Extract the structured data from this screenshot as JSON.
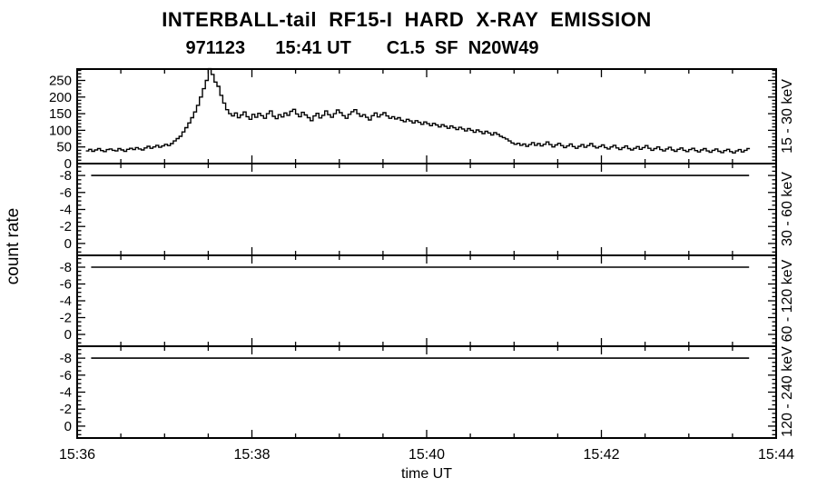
{
  "header": {
    "title": "INTERBALL-tail  RF15-I  HARD  X-RAY  EMISSION",
    "subtitle": "971123      15:41 UT       C1.5  SF  N20W49"
  },
  "chart_data": {
    "type": "line",
    "title": "INTERBALL-tail RF15-I HARD X-RAY EMISSION",
    "event": {
      "date": "971123",
      "peak_time": "15:41 UT",
      "goes_class": "C1.5",
      "flare_type": "SF",
      "location": "N20W49"
    },
    "xlabel": "time UT",
    "ylabel": "count rate",
    "x_range": [
      "15:36",
      "15:44"
    ],
    "x_ticklabels": [
      "15:36",
      "15:38",
      "15:40",
      "15:42",
      "15:44"
    ],
    "x_ticks_minutes": [
      0,
      2,
      4,
      6,
      8
    ],
    "x_minor_step_minutes": 0.5,
    "grid": "off",
    "legend": "none",
    "panels": [
      {
        "band": "15 - 30 keV",
        "ylim": [
          0,
          284
        ],
        "yticks": [
          0,
          50,
          100,
          150,
          200,
          250
        ],
        "ytick_labels": [
          "0",
          "50",
          "100",
          "150",
          "200",
          "250"
        ],
        "yminor": {
          "from": 10,
          "to": 280,
          "step": 10
        },
        "series": {
          "kind": "step",
          "t0_minutes": 0.1,
          "bin_minutes": 0.033333,
          "values": [
            38,
            43,
            37,
            41,
            45,
            39,
            36,
            42,
            44,
            40,
            38,
            45,
            41,
            37,
            43,
            46,
            42,
            48,
            44,
            41,
            47,
            52,
            46,
            50,
            55,
            49,
            53,
            58,
            54,
            60,
            68,
            75,
            82,
            95,
            108,
            122,
            138,
            155,
            175,
            200,
            225,
            250,
            285,
            268,
            245,
            232,
            205,
            182,
            162,
            150,
            143,
            152,
            138,
            146,
            155,
            141,
            133,
            148,
            139,
            151,
            144,
            136,
            150,
            158,
            142,
            135,
            147,
            140,
            152,
            145,
            157,
            163,
            149,
            141,
            154,
            146,
            138,
            129,
            143,
            151,
            137,
            145,
            158,
            147,
            139,
            150,
            161,
            153,
            144,
            136,
            148,
            156,
            162,
            150,
            142,
            147,
            139,
            131,
            144,
            152,
            140,
            147,
            153,
            143,
            136,
            141,
            134,
            138,
            130,
            126,
            133,
            128,
            122,
            129,
            124,
            118,
            125,
            120,
            114,
            121,
            116,
            110,
            117,
            112,
            106,
            113,
            108,
            102,
            109,
            104,
            98,
            105,
            100,
            94,
            101,
            96,
            90,
            97,
            92,
            86,
            93,
            88,
            82,
            78,
            74,
            68,
            62,
            58,
            61,
            55,
            59,
            52,
            57,
            63,
            55,
            60,
            53,
            58,
            65,
            57,
            50,
            56,
            61,
            54,
            48,
            53,
            59,
            51,
            46,
            52,
            57,
            49,
            54,
            60,
            52,
            47,
            51,
            56,
            48,
            44,
            50,
            55,
            47,
            42,
            48,
            53,
            45,
            41,
            46,
            51,
            43,
            48,
            54,
            46,
            40,
            45,
            50,
            42,
            38,
            44,
            49,
            41,
            37,
            43,
            47,
            40,
            36,
            42,
            46,
            39,
            35,
            41,
            45,
            38,
            34,
            40,
            44,
            37,
            33,
            39,
            43,
            36,
            32,
            38,
            42,
            35,
            40,
            45
          ]
        }
      },
      {
        "band": "30 - 60 keV",
        "ylim": [
          1.4,
          -9.4
        ],
        "yticks": [
          0,
          -2,
          -4,
          -6,
          -8
        ],
        "ytick_labels": [
          "0",
          "-2",
          "-4",
          "-6",
          "-8"
        ],
        "yminor": {
          "from": -9,
          "to": 1,
          "step": 0.5
        },
        "series": {
          "kind": "flat",
          "value": -8,
          "t_range_minutes": [
            0.16,
            7.69
          ]
        }
      },
      {
        "band": "60 - 120 keV",
        "ylim": [
          1.4,
          -9.4
        ],
        "yticks": [
          0,
          -2,
          -4,
          -6,
          -8
        ],
        "ytick_labels": [
          "0",
          "-2",
          "-4",
          "-6",
          "-8"
        ],
        "yminor": {
          "from": -9,
          "to": 1,
          "step": 0.5
        },
        "series": {
          "kind": "flat",
          "value": -8,
          "t_range_minutes": [
            0.16,
            7.69
          ]
        }
      },
      {
        "band": "120 - 240 keV",
        "ylim": [
          1.4,
          -9.4
        ],
        "yticks": [
          0,
          -2,
          -4,
          -6,
          -8
        ],
        "ytick_labels": [
          "0",
          "-2",
          "-4",
          "-6",
          "-8"
        ],
        "yminor": {
          "from": -9,
          "to": 1,
          "step": 0.5
        },
        "series": {
          "kind": "flat",
          "value": -8,
          "t_range_minutes": [
            0.16,
            7.69
          ]
        }
      }
    ]
  }
}
